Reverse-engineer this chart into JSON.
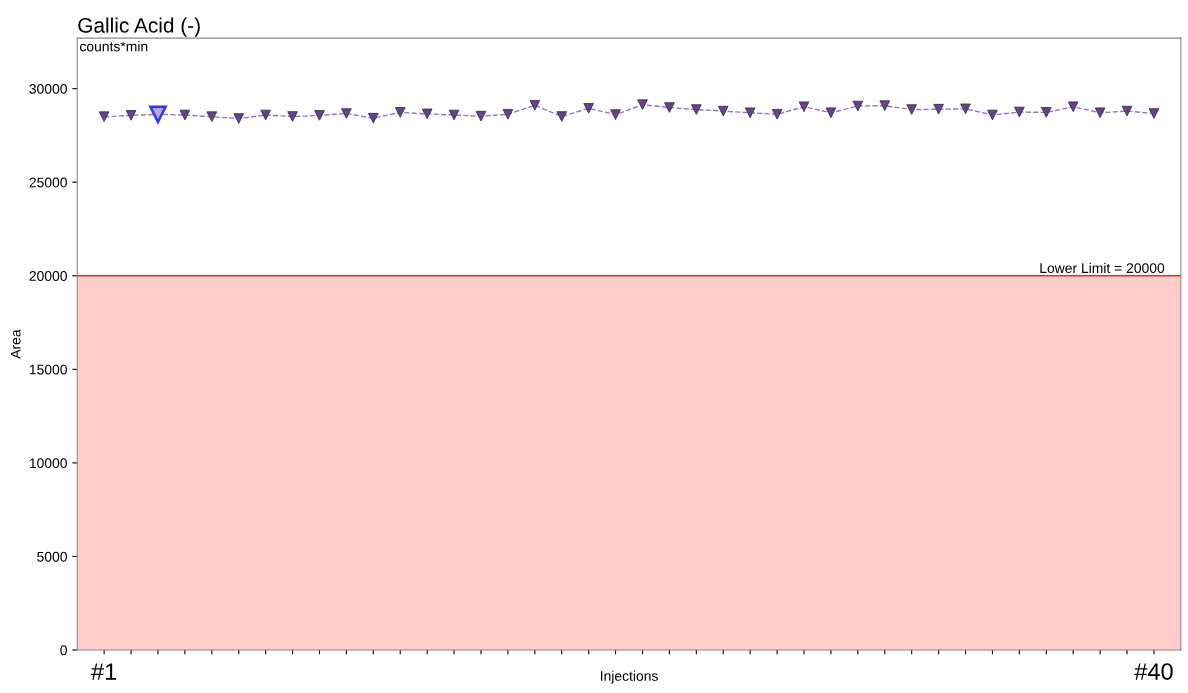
{
  "chart_data": {
    "type": "line",
    "title": "Gallic Acid (-)",
    "xlabel": "Injections",
    "ylabel": "Area",
    "annotations": [
      "counts*min"
    ],
    "categories": [
      "#1",
      null,
      null,
      null,
      null,
      null,
      null,
      null,
      null,
      null,
      null,
      null,
      null,
      null,
      null,
      null,
      null,
      null,
      null,
      null,
      null,
      null,
      null,
      null,
      null,
      null,
      null,
      null,
      null,
      null,
      null,
      null,
      null,
      null,
      null,
      null,
      null,
      null,
      null,
      "#40"
    ],
    "series": [
      {
        "color": "#6a3d9a",
        "marker": "triangle",
        "line_style": "dashed",
        "colors": [
          "#6a3d9a",
          "#6a3d9a",
          "#3333ff",
          "#6a3d9a",
          "#6a3d9a",
          "#6a3d9a",
          "#6a3d9a",
          "#6a3d9a",
          "#6a3d9a",
          "#6a3d9a",
          "#6a3d9a",
          "#6a3d9a",
          "#6a3d9a",
          "#6a3d9a",
          "#6a3d9a",
          "#6a3d9a",
          "#6a3d9a",
          "#6a3d9a",
          "#6a3d9a",
          "#6a3d9a",
          "#6a3d9a",
          "#6a3d9a",
          "#6a3d9a",
          "#6a3d9a",
          "#6a3d9a",
          "#6a3d9a",
          "#6a3d9a",
          "#6a3d9a",
          "#6a3d9a",
          "#6a3d9a",
          "#6a3d9a",
          "#6a3d9a",
          "#6a3d9a",
          "#6a3d9a",
          "#6a3d9a",
          "#6a3d9a",
          "#6a3d9a",
          "#6a3d9a",
          "#6a3d9a",
          "#6a3d9a"
        ],
        "values": [
          28500,
          28570,
          28630,
          28590,
          28500,
          28400,
          28590,
          28510,
          28570,
          28670,
          28420,
          28730,
          28650,
          28590,
          28530,
          28630,
          29110,
          28510,
          28950,
          28610,
          29140,
          28990,
          28880,
          28800,
          28710,
          28630,
          29030,
          28710,
          29070,
          29090,
          28880,
          28900,
          28920,
          28590,
          28750,
          28730,
          29030,
          28710,
          28800,
          28670
        ]
      }
    ],
    "ylim": [
      0,
      32700
    ],
    "yticks": [
      0,
      5000,
      10000,
      15000,
      20000,
      25000,
      30000
    ],
    "ref_lines": [
      {
        "axis": "y",
        "value": 20000,
        "label": "Lower Limit = 20000",
        "color": "#e0302a"
      }
    ],
    "bands": [
      {
        "axis": "y",
        "from": 0,
        "to": 20000,
        "color": "#ffcccc"
      }
    ],
    "grid": false,
    "legend": false
  }
}
